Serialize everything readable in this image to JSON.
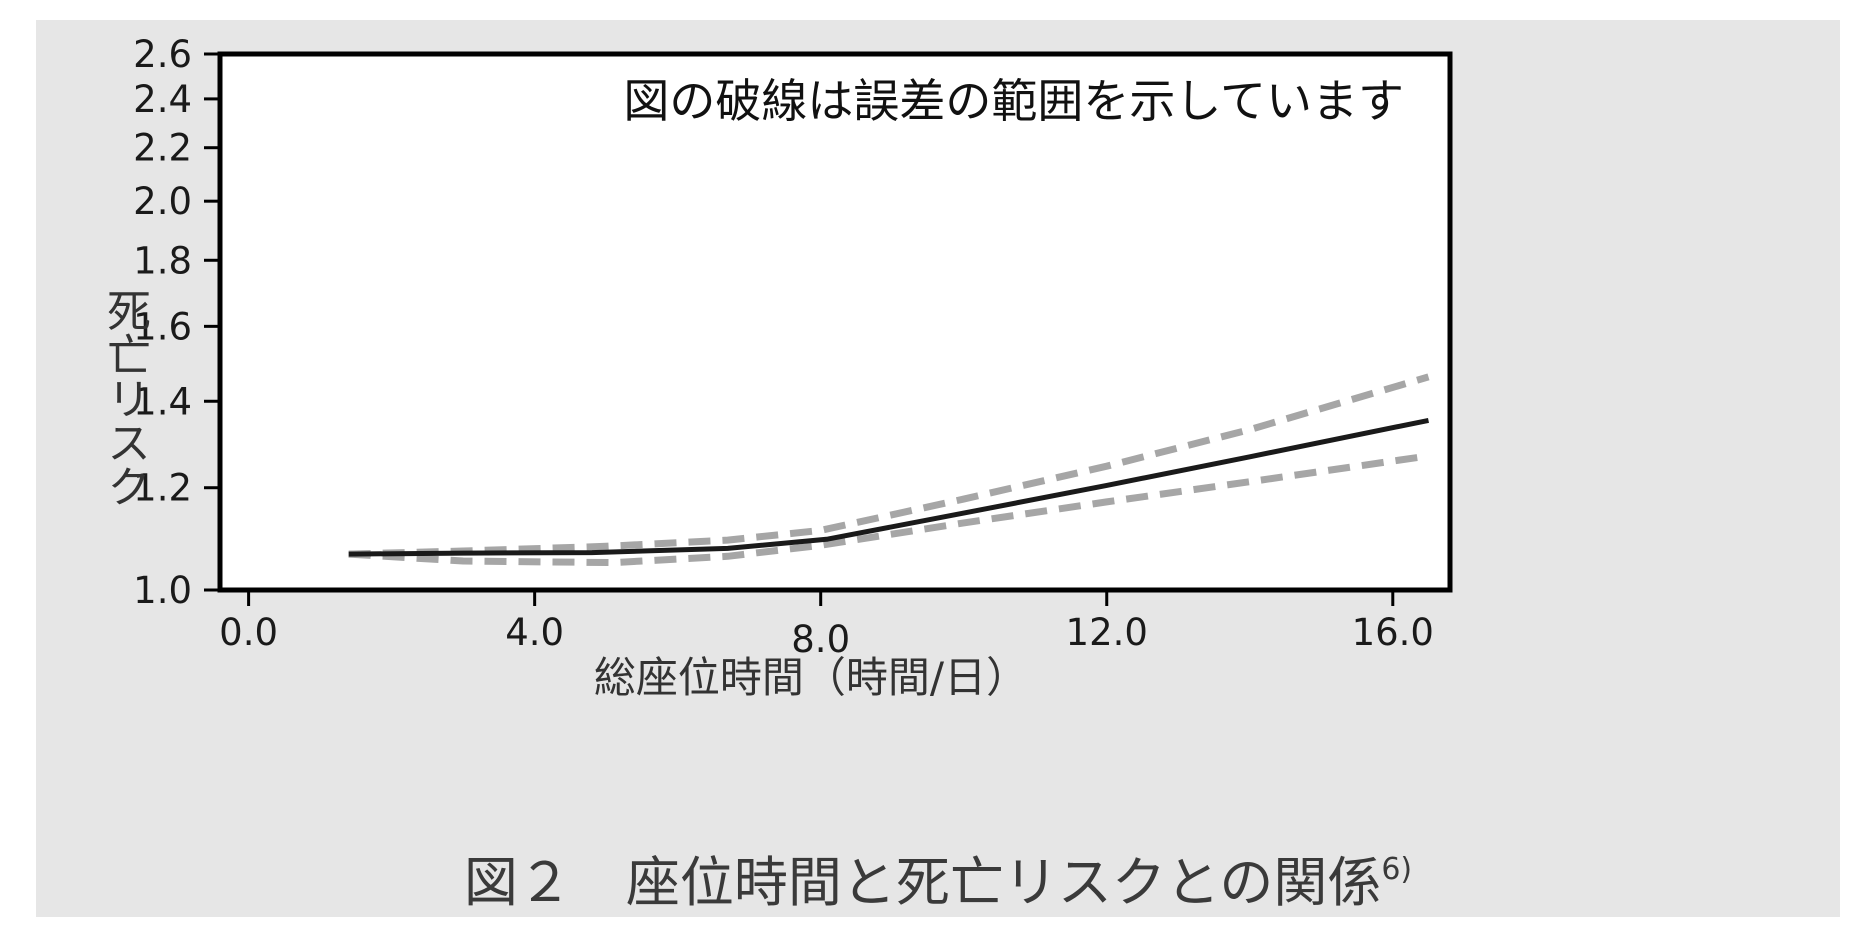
{
  "chart_data": {
    "type": "line",
    "xlabel": "総座位時間（時間/日）",
    "ylabel": "死亡リスク",
    "annotation": "図の破線は誤差の範囲を示しています",
    "caption": "図２　座位時間と死亡リスクとの関係",
    "caption_ref": "6)",
    "xlim": [
      -0.4,
      16.8
    ],
    "ylim": [
      1.0,
      2.6
    ],
    "yscale": "log",
    "grid": false,
    "x_ticks": [
      0.0,
      4.0,
      8.0,
      12.0,
      16.0
    ],
    "x_tick_labels": [
      "0.0",
      "4.0",
      "8.0",
      "12.0",
      "16.0"
    ],
    "y_ticks": [
      1.0,
      1.2,
      1.4,
      1.6,
      1.8,
      2.0,
      2.2,
      2.4,
      2.6
    ],
    "y_tick_labels": [
      "1.0",
      "1.2",
      "1.4",
      "1.6",
      "1.8",
      "2.0",
      "2.2",
      "2.4",
      "2.6"
    ],
    "series": [
      {
        "style": "solid",
        "color": "#1a1a1a",
        "x": [
          1.4,
          3.0,
          4.8,
          6.7,
          8.1,
          10.0,
          12.0,
          14.0,
          16.5
        ],
        "y": [
          1.066,
          1.068,
          1.069,
          1.077,
          1.095,
          1.147,
          1.205,
          1.268,
          1.353
        ]
      },
      {
        "style": "dashed",
        "color": "#a6a6a6",
        "x": [
          1.4,
          3.0,
          5.0,
          6.7,
          8.0,
          10.0,
          12.0,
          14.0,
          16.5
        ],
        "y": [
          1.066,
          1.072,
          1.081,
          1.093,
          1.112,
          1.176,
          1.247,
          1.331,
          1.462
        ]
      },
      {
        "style": "dashed",
        "color": "#a6a6a6",
        "x": [
          1.4,
          3.0,
          5.1,
          6.7,
          8.0,
          10.0,
          12.0,
          14.0,
          16.5
        ],
        "y": [
          1.066,
          1.053,
          1.05,
          1.062,
          1.083,
          1.127,
          1.17,
          1.213,
          1.27
        ]
      }
    ]
  }
}
